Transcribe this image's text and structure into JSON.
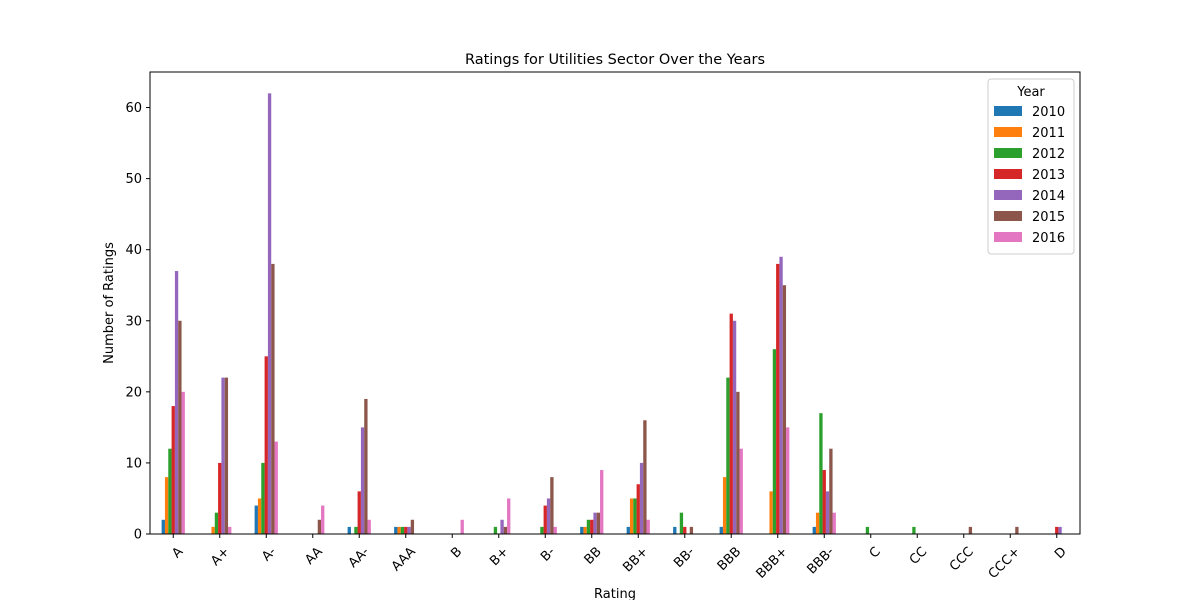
{
  "chart_data": {
    "type": "bar",
    "title": "Ratings for Utilities Sector Over the Years",
    "xlabel": "Rating",
    "ylabel": "Number of Ratings",
    "ylim": [
      0,
      65
    ],
    "yticks": [
      0,
      10,
      20,
      30,
      40,
      50,
      60
    ],
    "grid": false,
    "legend": {
      "title": "Year",
      "placement": "top-right"
    },
    "categories": [
      "A",
      "A+",
      "A-",
      "AA",
      "AA-",
      "AAA",
      "B",
      "B+",
      "B-",
      "BB",
      "BB+",
      "BB-",
      "BBB",
      "BBB+",
      "BBB-",
      "C",
      "CC",
      "CCC",
      "CCC+",
      "D"
    ],
    "series": [
      {
        "name": "2010",
        "color": "#1f77b4",
        "values": [
          2,
          0,
          4,
          0,
          1,
          1,
          0,
          0,
          0,
          1,
          1,
          1,
          1,
          0,
          1,
          0,
          0,
          0,
          0,
          0
        ]
      },
      {
        "name": "2011",
        "color": "#ff7f0e",
        "values": [
          8,
          1,
          5,
          0,
          0,
          1,
          0,
          0,
          0,
          1,
          5,
          0,
          8,
          6,
          3,
          0,
          0,
          0,
          0,
          0
        ]
      },
      {
        "name": "2012",
        "color": "#2ca02c",
        "values": [
          12,
          3,
          10,
          0,
          1,
          1,
          0,
          1,
          1,
          2,
          5,
          3,
          22,
          26,
          17,
          1,
          1,
          0,
          0,
          0
        ]
      },
      {
        "name": "2013",
        "color": "#d62728",
        "values": [
          18,
          10,
          25,
          0,
          6,
          1,
          0,
          0,
          4,
          2,
          7,
          1,
          31,
          38,
          9,
          0,
          0,
          0,
          0,
          1
        ]
      },
      {
        "name": "2014",
        "color": "#9467bd",
        "values": [
          37,
          22,
          62,
          0,
          15,
          1,
          0,
          2,
          5,
          3,
          10,
          0,
          30,
          39,
          6,
          0,
          0,
          0,
          0,
          1
        ]
      },
      {
        "name": "2015",
        "color": "#8c564b",
        "values": [
          30,
          22,
          38,
          2,
          19,
          2,
          0,
          1,
          8,
          3,
          16,
          1,
          20,
          35,
          12,
          0,
          0,
          1,
          1,
          0
        ]
      },
      {
        "name": "2016",
        "color": "#e377c2",
        "values": [
          20,
          1,
          13,
          4,
          2,
          0,
          2,
          5,
          1,
          9,
          2,
          0,
          12,
          15,
          3,
          0,
          0,
          0,
          0,
          0
        ]
      }
    ]
  }
}
